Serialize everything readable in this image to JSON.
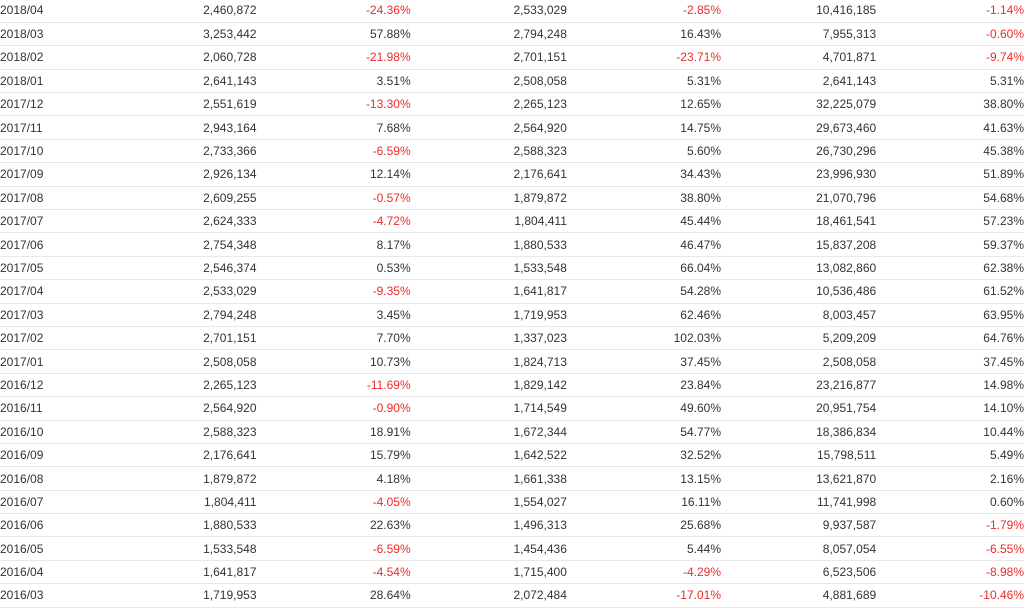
{
  "colors": {
    "text": "#333333",
    "negative": "#ee2a2a",
    "row_border": "#e8e8e8"
  },
  "rows": [
    [
      "2018/04",
      "2,460,872",
      "-24.36%",
      "2,533,029",
      "-2.85%",
      "10,416,185",
      "-1.14%"
    ],
    [
      "2018/03",
      "3,253,442",
      "57.88%",
      "2,794,248",
      "16.43%",
      "7,955,313",
      "-0.60%"
    ],
    [
      "2018/02",
      "2,060,728",
      "-21.98%",
      "2,701,151",
      "-23.71%",
      "4,701,871",
      "-9.74%"
    ],
    [
      "2018/01",
      "2,641,143",
      "3.51%",
      "2,508,058",
      "5.31%",
      "2,641,143",
      "5.31%"
    ],
    [
      "2017/12",
      "2,551,619",
      "-13.30%",
      "2,265,123",
      "12.65%",
      "32,225,079",
      "38.80%"
    ],
    [
      "2017/11",
      "2,943,164",
      "7.68%",
      "2,564,920",
      "14.75%",
      "29,673,460",
      "41.63%"
    ],
    [
      "2017/10",
      "2,733,366",
      "-6.59%",
      "2,588,323",
      "5.60%",
      "26,730,296",
      "45.38%"
    ],
    [
      "2017/09",
      "2,926,134",
      "12.14%",
      "2,176,641",
      "34.43%",
      "23,996,930",
      "51.89%"
    ],
    [
      "2017/08",
      "2,609,255",
      "-0.57%",
      "1,879,872",
      "38.80%",
      "21,070,796",
      "54.68%"
    ],
    [
      "2017/07",
      "2,624,333",
      "-4.72%",
      "1,804,411",
      "45.44%",
      "18,461,541",
      "57.23%"
    ],
    [
      "2017/06",
      "2,754,348",
      "8.17%",
      "1,880,533",
      "46.47%",
      "15,837,208",
      "59.37%"
    ],
    [
      "2017/05",
      "2,546,374",
      "0.53%",
      "1,533,548",
      "66.04%",
      "13,082,860",
      "62.38%"
    ],
    [
      "2017/04",
      "2,533,029",
      "-9.35%",
      "1,641,817",
      "54.28%",
      "10,536,486",
      "61.52%"
    ],
    [
      "2017/03",
      "2,794,248",
      "3.45%",
      "1,719,953",
      "62.46%",
      "8,003,457",
      "63.95%"
    ],
    [
      "2017/02",
      "2,701,151",
      "7.70%",
      "1,337,023",
      "102.03%",
      "5,209,209",
      "64.76%"
    ],
    [
      "2017/01",
      "2,508,058",
      "10.73%",
      "1,824,713",
      "37.45%",
      "2,508,058",
      "37.45%"
    ],
    [
      "2016/12",
      "2,265,123",
      "-11.69%",
      "1,829,142",
      "23.84%",
      "23,216,877",
      "14.98%"
    ],
    [
      "2016/11",
      "2,564,920",
      "-0.90%",
      "1,714,549",
      "49.60%",
      "20,951,754",
      "14.10%"
    ],
    [
      "2016/10",
      "2,588,323",
      "18.91%",
      "1,672,344",
      "54.77%",
      "18,386,834",
      "10.44%"
    ],
    [
      "2016/09",
      "2,176,641",
      "15.79%",
      "1,642,522",
      "32.52%",
      "15,798,511",
      "5.49%"
    ],
    [
      "2016/08",
      "1,879,872",
      "4.18%",
      "1,661,338",
      "13.15%",
      "13,621,870",
      "2.16%"
    ],
    [
      "2016/07",
      "1,804,411",
      "-4.05%",
      "1,554,027",
      "16.11%",
      "11,741,998",
      "0.60%"
    ],
    [
      "2016/06",
      "1,880,533",
      "22.63%",
      "1,496,313",
      "25.68%",
      "9,937,587",
      "-1.79%"
    ],
    [
      "2016/05",
      "1,533,548",
      "-6.59%",
      "1,454,436",
      "5.44%",
      "8,057,054",
      "-6.55%"
    ],
    [
      "2016/04",
      "1,641,817",
      "-4.54%",
      "1,715,400",
      "-4.29%",
      "6,523,506",
      "-8.98%"
    ],
    [
      "2016/03",
      "1,719,953",
      "28.64%",
      "2,072,484",
      "-17.01%",
      "4,881,689",
      "-10.46%"
    ]
  ]
}
